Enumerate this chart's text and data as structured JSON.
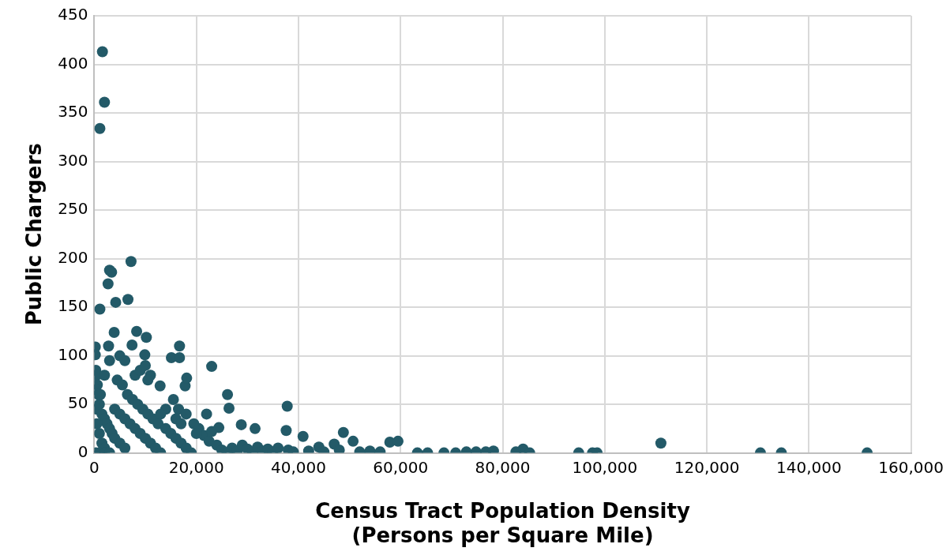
{
  "chart_data": {
    "type": "scatter",
    "xlabel": "Census Tract Population Density\n(Persons per Square Mile)",
    "ylabel": "Public Chargers",
    "xlim": [
      0,
      160000
    ],
    "xticks": [
      0,
      {
        "value": 20000,
        "label": "20,000"
      },
      {
        "value": 40000,
        "label": "40,000"
      },
      {
        "value": 60000,
        "label": "60,000"
      },
      {
        "value": 80000,
        "label": "80,000"
      },
      {
        "value": 100000,
        "label": "100,000"
      },
      {
        "value": 120000,
        "label": "120,000"
      },
      {
        "value": 140000,
        "label": "140,000"
      },
      {
        "value": 160000,
        "label": "160,000"
      }
    ],
    "ylim": [
      0,
      450
    ],
    "yticks": [
      0,
      50,
      100,
      150,
      200,
      250,
      300,
      350,
      400,
      450
    ],
    "grid": true,
    "marker": "circle",
    "series": [
      {
        "color": "#235a68",
        "x": [
          1600,
          2000,
          1100,
          1100,
          2700,
          3000,
          3400,
          7200,
          6600,
          4200,
          3900,
          8300,
          10200,
          7400,
          2800,
          200,
          200,
          15100,
          16700,
          16700,
          23000,
          17800,
          18100,
          12900,
          26100,
          26400,
          37800,
          37600,
          40900,
          48800,
          50700,
          57900,
          59500,
          111000,
          84000,
          24400,
          28800,
          31500,
          9900,
          11000,
          63300,
          65300,
          68500,
          70800,
          72900,
          74800,
          76700,
          78200,
          82600,
          85300,
          94900,
          97600,
          98500,
          130500,
          134600,
          151400,
          300,
          400,
          600,
          300,
          800,
          1000,
          500,
          1500,
          2000,
          2500,
          3000,
          3500,
          4000,
          5000,
          6000,
          500,
          1000,
          1500,
          2000,
          300,
          1000,
          2000,
          3000,
          4000,
          5000,
          6000,
          7000,
          8000,
          9000,
          10000,
          11000,
          12000,
          13000,
          4500,
          5500,
          6500,
          7500,
          8500,
          9500,
          10500,
          11500,
          12500,
          14000,
          15000,
          16000,
          17000,
          18000,
          19000,
          15500,
          16500,
          18000,
          19500,
          20500,
          21500,
          22500,
          24000,
          25000,
          26000,
          27000,
          28000,
          29000,
          30000,
          31000,
          32000,
          33000,
          34000,
          35000,
          36000,
          38000,
          39000,
          42000,
          44000,
          45000,
          47000,
          48000,
          52000,
          54000,
          56000,
          8000,
          9000,
          10000,
          10500,
          5000,
          6000,
          3000,
          2000,
          1200,
          14000,
          13000,
          16000,
          17000,
          20000,
          22000,
          23000
        ],
        "values": [
          413,
          361,
          334,
          148,
          174,
          188,
          186,
          197,
          158,
          155,
          124,
          125,
          119,
          111,
          110,
          109,
          101,
          98,
          110,
          98,
          89,
          69,
          77,
          69,
          60,
          46,
          48,
          23,
          17,
          21,
          12,
          11,
          12,
          10,
          4,
          26,
          29,
          25,
          101,
          80,
          0,
          0,
          0,
          0,
          1,
          1,
          1,
          2,
          1,
          0,
          0,
          0,
          0,
          0,
          0,
          0,
          85,
          80,
          70,
          65,
          60,
          50,
          45,
          40,
          35,
          30,
          25,
          20,
          15,
          10,
          5,
          30,
          20,
          10,
          5,
          0,
          0,
          0,
          0,
          45,
          40,
          35,
          30,
          25,
          20,
          15,
          10,
          5,
          0,
          75,
          70,
          60,
          55,
          50,
          45,
          40,
          35,
          30,
          25,
          20,
          15,
          10,
          5,
          0,
          55,
          45,
          40,
          30,
          25,
          18,
          12,
          8,
          3,
          0,
          5,
          2,
          8,
          4,
          1,
          6,
          2,
          4,
          1,
          5,
          3,
          1,
          2,
          6,
          1,
          9,
          3,
          1,
          2,
          1,
          80,
          85,
          90,
          75,
          100,
          95,
          95,
          80,
          60,
          45,
          40,
          35,
          30,
          20,
          40,
          22
        ]
      }
    ]
  }
}
